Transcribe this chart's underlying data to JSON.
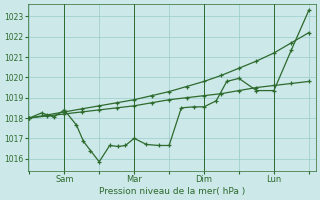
{
  "xlabel": "Pression niveau de la mer( hPa )",
  "bg_color": "#cce8e8",
  "grid_color": "#99cccc",
  "line_color": "#2d6a2d",
  "yticks": [
    1016,
    1017,
    1018,
    1019,
    1020,
    1021,
    1022,
    1023
  ],
  "ylim": [
    1015.4,
    1023.6
  ],
  "xtick_labels": [
    "",
    "Sam",
    "",
    "Mar",
    "",
    "Dim",
    "",
    "Lun",
    ""
  ],
  "xtick_positions": [
    0,
    1,
    2,
    3,
    4,
    5,
    6,
    7,
    8
  ],
  "vline_positions": [
    1,
    3,
    5,
    7
  ],
  "xlim": [
    -0.05,
    8.2
  ],
  "series_upper": {
    "x": [
      0,
      0.5,
      1.0,
      1.5,
      2.0,
      2.5,
      3.0,
      3.5,
      4.0,
      4.5,
      5.0,
      5.5,
      6.0,
      6.5,
      7.0,
      7.5,
      8.0
    ],
    "y": [
      1018.0,
      1018.15,
      1018.3,
      1018.45,
      1018.6,
      1018.75,
      1018.9,
      1019.1,
      1019.3,
      1019.55,
      1019.8,
      1020.1,
      1020.45,
      1020.8,
      1021.2,
      1021.7,
      1022.2
    ]
  },
  "series_lower": {
    "x": [
      0,
      0.5,
      1.0,
      1.5,
      2.0,
      2.5,
      3.0,
      3.5,
      4.0,
      4.5,
      5.0,
      5.5,
      6.0,
      6.5,
      7.0,
      7.5,
      8.0
    ],
    "y": [
      1018.0,
      1018.1,
      1018.2,
      1018.3,
      1018.4,
      1018.5,
      1018.6,
      1018.75,
      1018.9,
      1019.0,
      1019.1,
      1019.2,
      1019.35,
      1019.5,
      1019.6,
      1019.7,
      1019.8
    ]
  },
  "series_main": {
    "x": [
      0,
      0.35,
      0.7,
      1.0,
      1.35,
      1.55,
      1.75,
      2.0,
      2.3,
      2.55,
      2.75,
      3.0,
      3.35,
      3.7,
      4.0,
      4.35,
      4.7,
      5.0,
      5.35,
      5.65,
      6.0,
      6.5,
      7.0,
      7.5,
      8.0
    ],
    "y": [
      1018.0,
      1018.25,
      1018.05,
      1018.4,
      1017.65,
      1016.85,
      1016.4,
      1015.85,
      1016.65,
      1016.6,
      1016.65,
      1017.0,
      1016.7,
      1016.65,
      1016.65,
      1018.5,
      1018.55,
      1018.55,
      1018.85,
      1019.8,
      1019.95,
      1019.35,
      1019.35,
      1021.35,
      1023.3
    ]
  }
}
